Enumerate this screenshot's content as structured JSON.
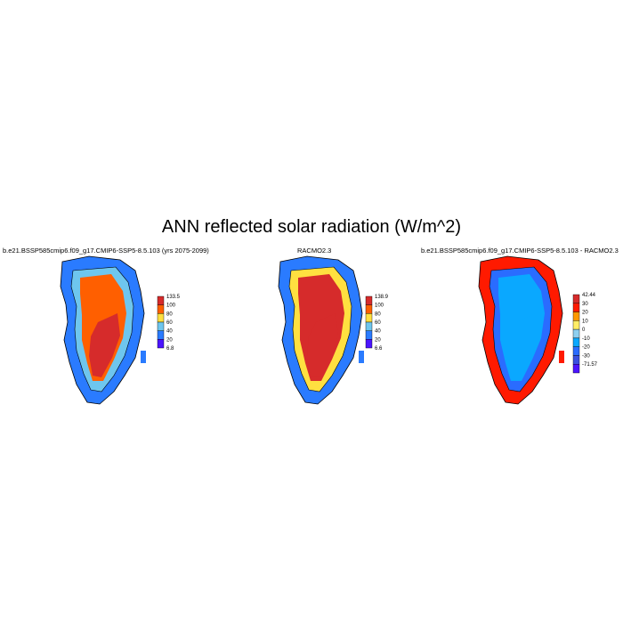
{
  "chart_data": [
    {
      "type": "heatmap",
      "title": "b.e21.BSSP585cmip6.f09_g17.CMIP6-SSP5-8.5.103 (yrs 2075-2099)",
      "colorbar": {
        "labels": [
          "133.5",
          "100",
          "80",
          "60",
          "40",
          "20",
          "6.8"
        ],
        "colors": [
          "#d62b2b",
          "#ff5f00",
          "#ffe040",
          "#6ec6ee",
          "#2a7bff",
          "#4b14ff"
        ]
      },
      "fill": {
        "interior": "#ff5f00",
        "core": "#d62b2b",
        "margin": "#6ec6ee",
        "edge": "#2a7bff"
      }
    },
    {
      "type": "heatmap",
      "title": "RACMO2.3",
      "colorbar": {
        "labels": [
          "138.9",
          "100",
          "80",
          "60",
          "40",
          "20",
          "6.6"
        ],
        "colors": [
          "#d62b2b",
          "#ff5f00",
          "#ffe040",
          "#6ec6ee",
          "#2a7bff",
          "#4b14ff"
        ]
      },
      "fill": {
        "interior": "#d62b2b",
        "core": "#d62b2b",
        "margin": "#ffe040",
        "edge": "#2a7bff"
      }
    },
    {
      "type": "heatmap",
      "title": "b.e21.BSSP585cmip6.f09_g17.CMIP6-SSP5-8.5.103 - RACMO2.3",
      "colorbar": {
        "labels": [
          "42.44",
          "30",
          "20",
          "10",
          "0",
          "-10",
          "-20",
          "-30",
          "-71.57"
        ],
        "colors": [
          "#d62b2b",
          "#ff1a00",
          "#ff9900",
          "#ffee66",
          "#8fd0f0",
          "#0aa8ff",
          "#2a6cff",
          "#3a50e0",
          "#4b14ff"
        ]
      },
      "fill": {
        "interior": "#0aa8ff",
        "core": "#0aa8ff",
        "margin": "#2a6cff",
        "edge": "#ff1a00"
      }
    }
  ],
  "figure": {
    "title": "ANN reflected solar radiation (W/m^2)"
  }
}
